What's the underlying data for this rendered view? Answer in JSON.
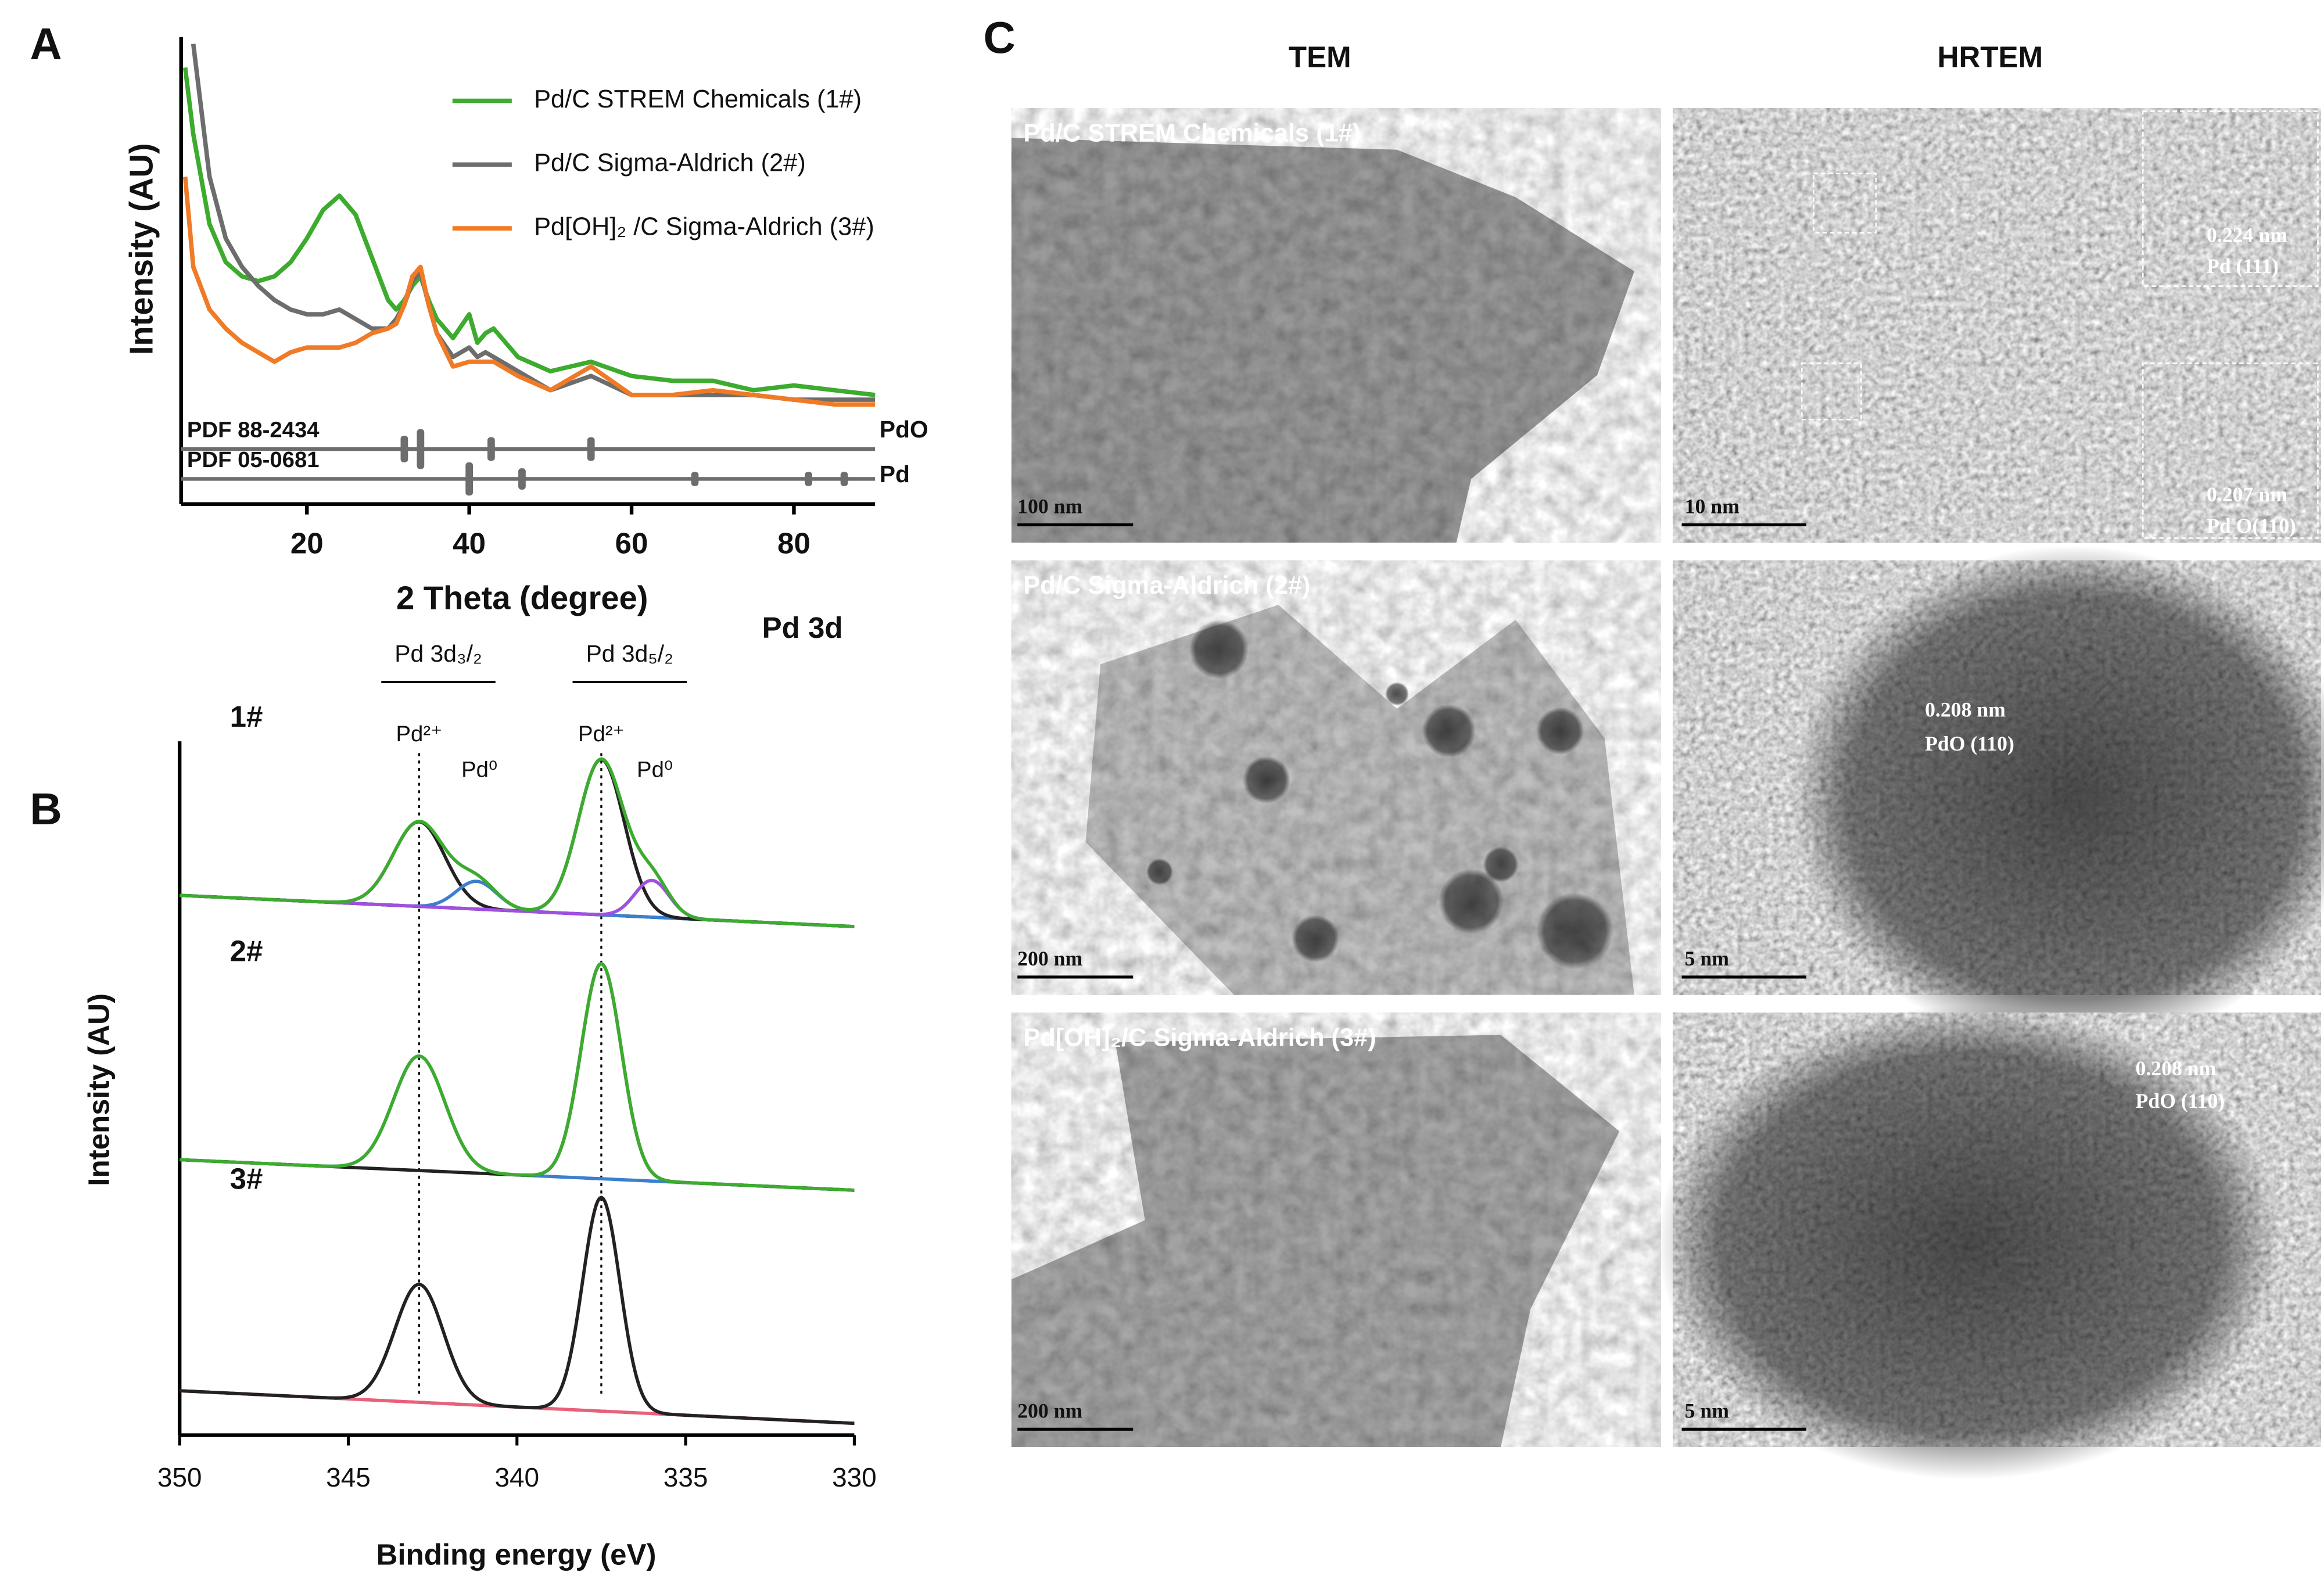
{
  "panel_labels": [
    "A",
    "B",
    "C"
  ],
  "chart_data": [
    {
      "type": "line",
      "xlabel": "2 Theta (degree)",
      "ylabel": "Intensity (AU)",
      "xlim": [
        4.5,
        90
      ],
      "xticks": [
        20,
        40,
        60,
        80
      ],
      "ylim": [
        0,
        100
      ],
      "x": [
        5,
        6,
        8,
        10,
        12,
        14,
        16,
        18,
        20,
        22,
        24,
        26,
        28,
        30,
        31,
        32,
        33,
        34,
        35,
        36,
        38,
        40,
        41,
        42,
        43,
        46,
        50,
        55,
        60,
        65,
        70,
        75,
        80,
        85,
        90
      ],
      "series": [
        {
          "name": "Pd/C STREM Chemicals (1#)",
          "color": "#3cab2e",
          "values": [
            92,
            78,
            59,
            51,
            48,
            47,
            48,
            51,
            56,
            62,
            65,
            61,
            52,
            43,
            41,
            43,
            46,
            48,
            43,
            39,
            35,
            40,
            34,
            36,
            37,
            31,
            28,
            30,
            27,
            26,
            26,
            24,
            25,
            24,
            23
          ]
        },
        {
          "name": "Pd/C Sigma-Aldrich (2#)",
          "color": "#6d6d6d",
          "values": [
            null,
            97,
            69,
            56,
            50,
            46,
            43,
            41,
            40,
            40,
            41,
            39,
            37,
            37,
            39,
            42,
            47,
            49,
            42,
            36,
            31,
            33,
            31,
            32,
            31,
            28,
            24,
            27,
            23,
            23,
            23,
            23,
            22,
            22,
            22
          ]
        },
        {
          "name": "Pd[OH]₂ /C Sigma-Aldrich (3#)",
          "color": "#f07a26",
          "values": [
            69,
            50,
            41,
            37,
            34,
            32,
            30,
            32,
            33,
            33,
            33,
            34,
            36,
            37,
            38,
            42,
            48,
            50,
            42,
            36,
            29,
            30,
            30,
            30,
            30,
            27,
            24,
            29,
            23,
            23,
            24,
            23,
            22,
            21,
            21
          ]
        }
      ],
      "references": [
        {
          "name": "PDF 88-2434",
          "phase": "PdO",
          "color": "#6d6d6d",
          "baseline": 11.6,
          "peaks": [
            32,
            34,
            42.7,
            55
          ],
          "heights": [
            5.6,
            8.4,
            5,
            5
          ]
        },
        {
          "name": "PDF 05-0681",
          "phase": "Pd",
          "color": "#6d6d6d",
          "baseline": 5.3,
          "peaks": [
            40,
            46.5,
            67.8,
            81.8,
            86.2
          ],
          "heights": [
            7,
            4.5,
            3,
            3,
            3
          ]
        }
      ]
    },
    {
      "type": "spectra",
      "title": "Pd 3d",
      "xlabel": "Binding energy (eV)",
      "ylabel": "Intensity (AU)",
      "xlim": [
        350,
        330
      ],
      "xticks": [
        350,
        345,
        340,
        335,
        330
      ],
      "ylim": [
        0,
        100
      ],
      "doublet_labels": [
        "Pd 3d₃/₂",
        "Pd 3d₅/₂"
      ],
      "reference_lines": [
        342.9,
        337.5
      ],
      "peak_labels": [
        "Pd²⁺",
        "Pd⁰"
      ],
      "samples": [
        {
          "name": "1#",
          "color": "#3cab2e",
          "background": [
            77.8,
            73.3
          ],
          "components": [
            {
              "center": 342.9,
              "height": 12.2,
              "fwhm": 1.8,
              "color": "#222222"
            },
            {
              "center": 341.2,
              "height": 4,
              "fwhm": 1.4,
              "color": "#3b7fd0"
            },
            {
              "center": 337.5,
              "height": 22.4,
              "fwhm": 1.6,
              "color": "#222222"
            },
            {
              "center": 336.0,
              "height": 5.3,
              "fwhm": 1.2,
              "color": "#a050e0"
            }
          ]
        },
        {
          "name": "2#",
          "color": "#3cab2e",
          "background": [
            39.7,
            35.3
          ],
          "components": [
            {
              "center": 342.9,
              "height": 16.5,
              "fwhm": 1.8,
              "color": "#3b7fd0"
            },
            {
              "center": 337.5,
              "height": 31,
              "fwhm": 1.4,
              "color": "#222222"
            }
          ]
        },
        {
          "name": "3#",
          "color": "#222222",
          "background": [
            6.4,
            1.7
          ],
          "components": [
            {
              "center": 342.9,
              "height": 17,
              "fwhm": 1.7,
              "color": "#e8607a"
            },
            {
              "center": 337.5,
              "height": 30.8,
              "fwhm": 1.3,
              "color": "#e8607a"
            }
          ]
        }
      ]
    }
  ],
  "micrographs": {
    "column_titles": [
      "TEM",
      "HRTEM"
    ],
    "rows": [
      {
        "tem": {
          "label": "Pd/C STREM Chemicals (1#)",
          "scale": "100 nm"
        },
        "hrtem": {
          "scale": "10 nm",
          "annotations": [
            "0.224 nm",
            "Pd (111)",
            "0.207 nm",
            "Pd O(110)"
          ]
        }
      },
      {
        "tem": {
          "label": "Pd/C Sigma-Aldrich (2#)",
          "scale": "200 nm"
        },
        "hrtem": {
          "scale": "5 nm",
          "annotations": [
            "0.208 nm",
            "PdO (110)"
          ]
        }
      },
      {
        "tem": {
          "label": "Pd[OH]₂/C Sigma-Aldrich (3#)",
          "scale": "200 nm"
        },
        "hrtem": {
          "scale": "5 nm",
          "annotations": [
            "0.208 nm",
            "PdO (110)"
          ]
        }
      }
    ]
  }
}
